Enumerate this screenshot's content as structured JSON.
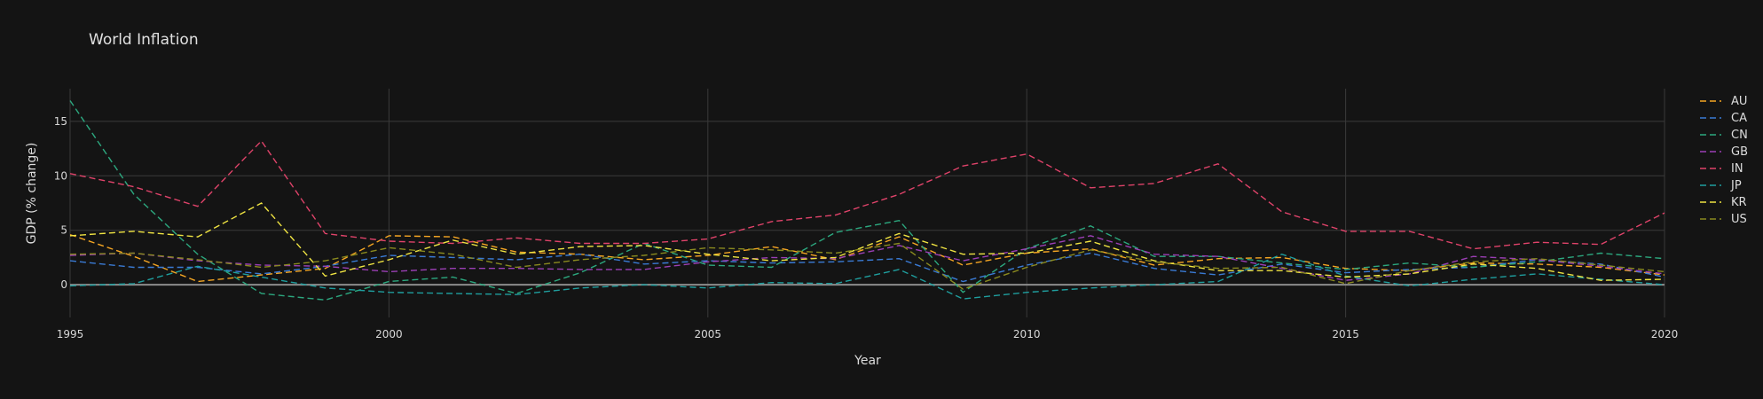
{
  "chart_data": {
    "type": "line",
    "title": "World Inflation",
    "xlabel": "Year",
    "ylabel": "GDP (% change)",
    "xlim": [
      1995,
      2020
    ],
    "ylim": [
      -3,
      18
    ],
    "x_ticks": [
      "1995",
      "2000",
      "2005",
      "2010",
      "2015",
      "2020"
    ],
    "y_ticks": [
      "0",
      "5",
      "10",
      "15"
    ],
    "legend_position": "right",
    "line_style": "dashed",
    "grid": true,
    "x": [
      1995,
      1996,
      1997,
      1998,
      1999,
      2000,
      2001,
      2002,
      2003,
      2004,
      2005,
      2006,
      2007,
      2008,
      2009,
      2010,
      2011,
      2012,
      2013,
      2014,
      2015,
      2016,
      2017,
      2018,
      2019,
      2020
    ],
    "series": [
      {
        "name": "AU",
        "color": "#f5a623",
        "values": [
          4.6,
          2.6,
          0.3,
          0.9,
          1.5,
          4.5,
          4.4,
          3.0,
          2.8,
          2.3,
          2.7,
          3.5,
          2.3,
          4.4,
          1.8,
          2.9,
          3.3,
          1.8,
          2.4,
          2.5,
          1.5,
          1.3,
          2.0,
          1.9,
          1.6,
          0.9
        ]
      },
      {
        "name": "CA",
        "color": "#3a7bd5",
        "values": [
          2.2,
          1.6,
          1.6,
          1.0,
          1.7,
          2.7,
          2.5,
          2.3,
          2.8,
          1.9,
          2.2,
          2.0,
          2.1,
          2.4,
          0.3,
          1.8,
          2.9,
          1.5,
          0.9,
          1.9,
          1.1,
          1.4,
          1.6,
          2.3,
          1.9,
          0.7
        ]
      },
      {
        "name": "CN",
        "color": "#2ca87f",
        "values": [
          16.9,
          8.3,
          2.8,
          -0.8,
          -1.4,
          0.3,
          0.7,
          -0.8,
          1.1,
          3.8,
          1.8,
          1.6,
          4.8,
          5.9,
          -0.7,
          3.3,
          5.4,
          2.6,
          2.6,
          2.0,
          1.4,
          2.0,
          1.6,
          2.1,
          2.9,
          2.4
        ]
      },
      {
        "name": "GB",
        "color": "#9b3fb5",
        "values": [
          2.7,
          2.9,
          2.2,
          1.8,
          1.7,
          1.2,
          1.5,
          1.5,
          1.4,
          1.4,
          2.1,
          2.5,
          2.4,
          3.6,
          2.2,
          3.3,
          4.5,
          2.8,
          2.6,
          1.5,
          0.4,
          1.0,
          2.6,
          2.3,
          1.7,
          1.0
        ]
      },
      {
        "name": "IN",
        "color": "#e0436a",
        "values": [
          10.2,
          9.0,
          7.2,
          13.2,
          4.7,
          4.0,
          3.8,
          4.3,
          3.8,
          3.8,
          4.2,
          5.8,
          6.4,
          8.3,
          10.9,
          12.0,
          8.9,
          9.3,
          11.1,
          6.7,
          4.9,
          4.9,
          3.3,
          3.9,
          3.7,
          6.6
        ]
      },
      {
        "name": "JP",
        "color": "#1f9e9e",
        "values": [
          -0.1,
          0.1,
          1.7,
          0.7,
          -0.3,
          -0.7,
          -0.8,
          -0.9,
          -0.3,
          0.0,
          -0.3,
          0.2,
          0.1,
          1.4,
          -1.3,
          -0.7,
          -0.3,
          0.0,
          0.3,
          2.8,
          0.8,
          -0.1,
          0.5,
          1.0,
          0.5,
          0.0
        ]
      },
      {
        "name": "KR",
        "color": "#f0e442",
        "values": [
          4.5,
          4.9,
          4.4,
          7.5,
          0.8,
          2.3,
          4.1,
          2.8,
          3.5,
          3.6,
          2.8,
          2.2,
          2.5,
          4.7,
          2.8,
          2.9,
          4.0,
          2.2,
          1.3,
          1.3,
          0.7,
          1.0,
          1.9,
          1.5,
          0.4,
          0.5
        ]
      },
      {
        "name": "US",
        "color": "#8a8a1f",
        "values": [
          2.8,
          2.9,
          2.3,
          1.6,
          2.2,
          3.4,
          2.8,
          1.6,
          2.3,
          2.7,
          3.4,
          3.2,
          2.9,
          3.8,
          -0.4,
          1.6,
          3.2,
          2.1,
          1.5,
          1.6,
          0.1,
          1.3,
          2.1,
          2.4,
          1.8,
          1.2
        ]
      }
    ]
  }
}
